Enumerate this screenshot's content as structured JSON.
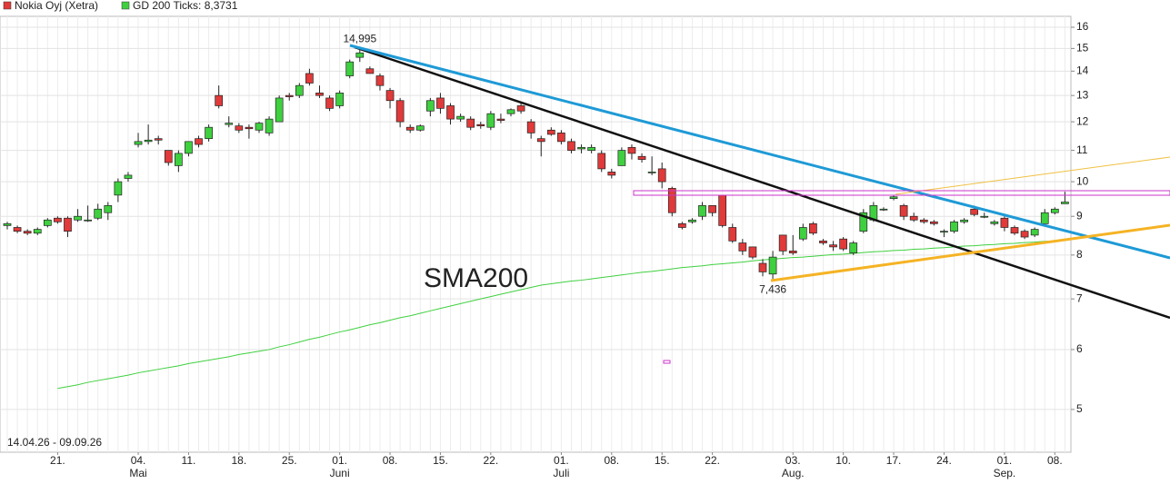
{
  "chart_data": {
    "type": "candlestick",
    "log_scale": true,
    "grid": true,
    "ylim": [
      4.39,
      16.54
    ],
    "yticks": [
      5,
      6,
      7,
      8,
      9,
      10,
      11,
      12,
      13,
      14,
      15,
      16
    ],
    "categories": [
      null,
      null,
      null,
      null,
      null,
      "21.",
      null,
      null,
      null,
      null,
      null,
      null,
      null,
      "04. Mai",
      null,
      null,
      null,
      null,
      "11.",
      null,
      null,
      null,
      null,
      "18.",
      null,
      null,
      null,
      null,
      "25.",
      null,
      null,
      null,
      null,
      "01. Juni",
      null,
      null,
      null,
      null,
      "08.",
      null,
      null,
      null,
      null,
      "15.",
      null,
      null,
      null,
      null,
      "22.",
      null,
      null,
      null,
      null,
      null,
      null,
      "01. Juli",
      null,
      null,
      null,
      null,
      "08.",
      null,
      null,
      null,
      null,
      "15.",
      null,
      null,
      null,
      null,
      "22.",
      null,
      null,
      null,
      null,
      null,
      null,
      null,
      "03. Aug.",
      null,
      null,
      null,
      null,
      "10.",
      null,
      null,
      null,
      null,
      "17.",
      null,
      null,
      null,
      null,
      "24.",
      null,
      null,
      null,
      null,
      null,
      "01. Sep.",
      null,
      null,
      null,
      null,
      "08.",
      null
    ],
    "series": [
      {
        "name": "Nokia Oyj (Xetra)",
        "color": "#e03a3a",
        "up_color": "#3fd03f",
        "open": [
          8.75,
          8.7,
          8.6,
          8.55,
          8.75,
          8.95,
          8.95,
          8.9,
          8.9,
          8.95,
          9.1,
          9.6,
          10.1,
          11.2,
          11.3,
          11.4,
          11.0,
          10.5,
          10.9,
          11.4,
          11.4,
          13.0,
          11.9,
          11.85,
          11.8,
          11.7,
          11.6,
          12.0,
          13.0,
          13.0,
          13.9,
          13.1,
          12.9,
          12.6,
          13.8,
          14.6,
          14.1,
          13.8,
          13.2,
          12.8,
          11.8,
          11.7,
          12.4,
          12.9,
          12.6,
          12.1,
          12.1,
          11.9,
          11.8,
          12.1,
          12.3,
          12.6,
          12.0,
          11.4,
          11.7,
          11.6,
          11.3,
          11.05,
          11.0,
          10.9,
          10.3,
          10.5,
          11.1,
          10.8,
          10.3,
          10.4,
          9.8,
          8.8,
          8.85,
          9.0,
          9.3,
          9.6,
          8.7,
          8.3,
          8.2,
          7.8,
          7.55,
          8.5,
          8.1,
          8.4,
          8.8,
          8.35,
          8.25,
          8.4,
          8.05,
          8.6,
          8.9,
          9.2,
          9.5,
          9.3,
          9.0,
          8.9,
          8.85,
          8.6,
          8.6,
          8.85,
          9.2,
          9.0,
          8.8,
          8.95,
          8.7,
          8.6,
          8.5,
          8.8,
          9.1,
          9.35
        ],
        "high": [
          8.85,
          8.75,
          8.65,
          8.7,
          8.95,
          9.0,
          9.0,
          9.2,
          9.3,
          9.35,
          9.4,
          10.1,
          10.3,
          11.6,
          11.9,
          11.5,
          11.0,
          11.0,
          11.3,
          11.5,
          11.9,
          13.4,
          12.2,
          11.95,
          11.9,
          12.0,
          12.2,
          13.0,
          13.1,
          13.5,
          14.1,
          13.4,
          13.0,
          13.2,
          14.5,
          14.995,
          14.2,
          13.9,
          13.3,
          12.9,
          11.9,
          11.9,
          12.9,
          13.1,
          12.7,
          12.3,
          12.2,
          12.0,
          12.4,
          12.3,
          12.5,
          12.7,
          12.1,
          11.5,
          11.8,
          11.7,
          11.4,
          11.2,
          11.2,
          11.0,
          10.4,
          11.1,
          11.2,
          10.9,
          10.8,
          10.6,
          9.85,
          8.85,
          8.95,
          9.4,
          9.3,
          9.6,
          8.8,
          8.4,
          8.2,
          7.9,
          8.1,
          8.5,
          8.5,
          8.8,
          8.85,
          8.4,
          8.35,
          8.45,
          8.35,
          9.2,
          9.4,
          9.25,
          9.6,
          9.35,
          9.1,
          8.95,
          8.9,
          8.65,
          8.9,
          8.95,
          9.3,
          9.1,
          8.9,
          9.0,
          8.75,
          8.65,
          8.7,
          9.2,
          9.25,
          9.7
        ],
        "low": [
          8.65,
          8.55,
          8.5,
          8.5,
          8.7,
          8.8,
          8.45,
          8.85,
          8.85,
          8.9,
          8.9,
          9.4,
          10.0,
          11.1,
          11.2,
          11.2,
          10.5,
          10.3,
          10.8,
          11.1,
          11.3,
          12.5,
          11.8,
          11.6,
          11.4,
          11.6,
          11.5,
          12.0,
          12.8,
          12.9,
          13.4,
          12.9,
          12.4,
          12.5,
          13.7,
          14.4,
          13.9,
          13.2,
          12.5,
          11.8,
          11.6,
          11.65,
          12.2,
          12.3,
          11.9,
          12.0,
          11.7,
          11.75,
          11.7,
          11.95,
          12.2,
          12.3,
          11.4,
          10.8,
          11.5,
          11.2,
          10.9,
          10.9,
          10.9,
          10.3,
          10.1,
          10.5,
          10.7,
          10.6,
          10.2,
          9.8,
          9.0,
          8.65,
          8.8,
          8.9,
          9.0,
          8.7,
          8.3,
          8.0,
          7.9,
          7.5,
          7.436,
          8.0,
          8.0,
          8.35,
          8.5,
          8.25,
          8.1,
          8.1,
          8.0,
          8.55,
          8.85,
          9.15,
          9.45,
          8.9,
          8.85,
          8.8,
          8.75,
          8.45,
          8.55,
          8.8,
          9.0,
          8.95,
          8.75,
          8.6,
          8.5,
          8.4,
          8.45,
          8.8,
          9.05,
          9.35
        ],
        "close": [
          8.8,
          8.6,
          8.55,
          8.65,
          8.9,
          8.85,
          8.6,
          9.0,
          8.9,
          9.2,
          9.3,
          10.0,
          10.2,
          11.3,
          11.35,
          11.35,
          10.6,
          10.9,
          11.3,
          11.2,
          11.8,
          12.6,
          11.95,
          11.7,
          11.75,
          11.95,
          12.1,
          12.9,
          12.95,
          13.4,
          13.5,
          13.0,
          12.5,
          13.1,
          14.4,
          14.8,
          13.9,
          13.4,
          12.8,
          12.0,
          11.7,
          11.85,
          12.8,
          12.5,
          12.1,
          12.2,
          11.8,
          11.85,
          12.3,
          12.05,
          12.45,
          12.4,
          11.6,
          11.3,
          11.55,
          11.3,
          11.0,
          11.1,
          11.1,
          10.4,
          10.2,
          11.0,
          10.9,
          10.7,
          10.3,
          10.0,
          9.1,
          8.7,
          8.9,
          9.3,
          9.1,
          8.75,
          8.35,
          8.1,
          7.95,
          7.6,
          7.95,
          8.1,
          8.05,
          8.7,
          8.55,
          8.3,
          8.2,
          8.15,
          8.3,
          9.1,
          9.3,
          9.2,
          9.55,
          9.0,
          8.9,
          8.85,
          8.8,
          8.6,
          8.85,
          8.9,
          9.05,
          9.0,
          8.85,
          8.7,
          8.55,
          8.45,
          8.65,
          9.1,
          9.2,
          9.4
        ]
      }
    ],
    "sma": {
      "name": "GD 200 Ticks: 8,3731",
      "color": "#3fd03f",
      "values": [
        null,
        null,
        null,
        null,
        null,
        5.33,
        5.36,
        5.39,
        5.43,
        5.46,
        5.49,
        5.52,
        5.55,
        5.59,
        5.62,
        5.65,
        5.68,
        5.71,
        5.75,
        5.78,
        5.81,
        5.84,
        5.87,
        5.91,
        5.94,
        5.97,
        6.0,
        6.05,
        6.09,
        6.14,
        6.19,
        6.23,
        6.28,
        6.33,
        6.37,
        6.42,
        6.47,
        6.51,
        6.56,
        6.61,
        6.65,
        6.7,
        6.75,
        6.8,
        6.85,
        6.9,
        6.95,
        7.0,
        7.05,
        7.1,
        7.15,
        7.2,
        7.25,
        7.3,
        7.33,
        7.36,
        7.39,
        7.41,
        7.44,
        7.47,
        7.5,
        7.53,
        7.56,
        7.59,
        7.61,
        7.64,
        7.67,
        7.7,
        7.72,
        7.74,
        7.77,
        7.79,
        7.81,
        7.83,
        7.86,
        7.88,
        7.9,
        7.92,
        7.94,
        7.95,
        7.97,
        7.99,
        8.01,
        8.02,
        8.04,
        8.06,
        8.08,
        8.09,
        8.11,
        8.12,
        8.14,
        8.15,
        8.17,
        8.18,
        8.2,
        8.22,
        8.23,
        8.25,
        8.26,
        8.28,
        8.29,
        8.31,
        8.32,
        8.34,
        8.35,
        8.37
      ]
    },
    "annotations": {
      "sma_label": "SMA200",
      "high_label": "14,995",
      "low_label": "7,436",
      "date_range": "14.04.26 - 09.09.26"
    }
  }
}
